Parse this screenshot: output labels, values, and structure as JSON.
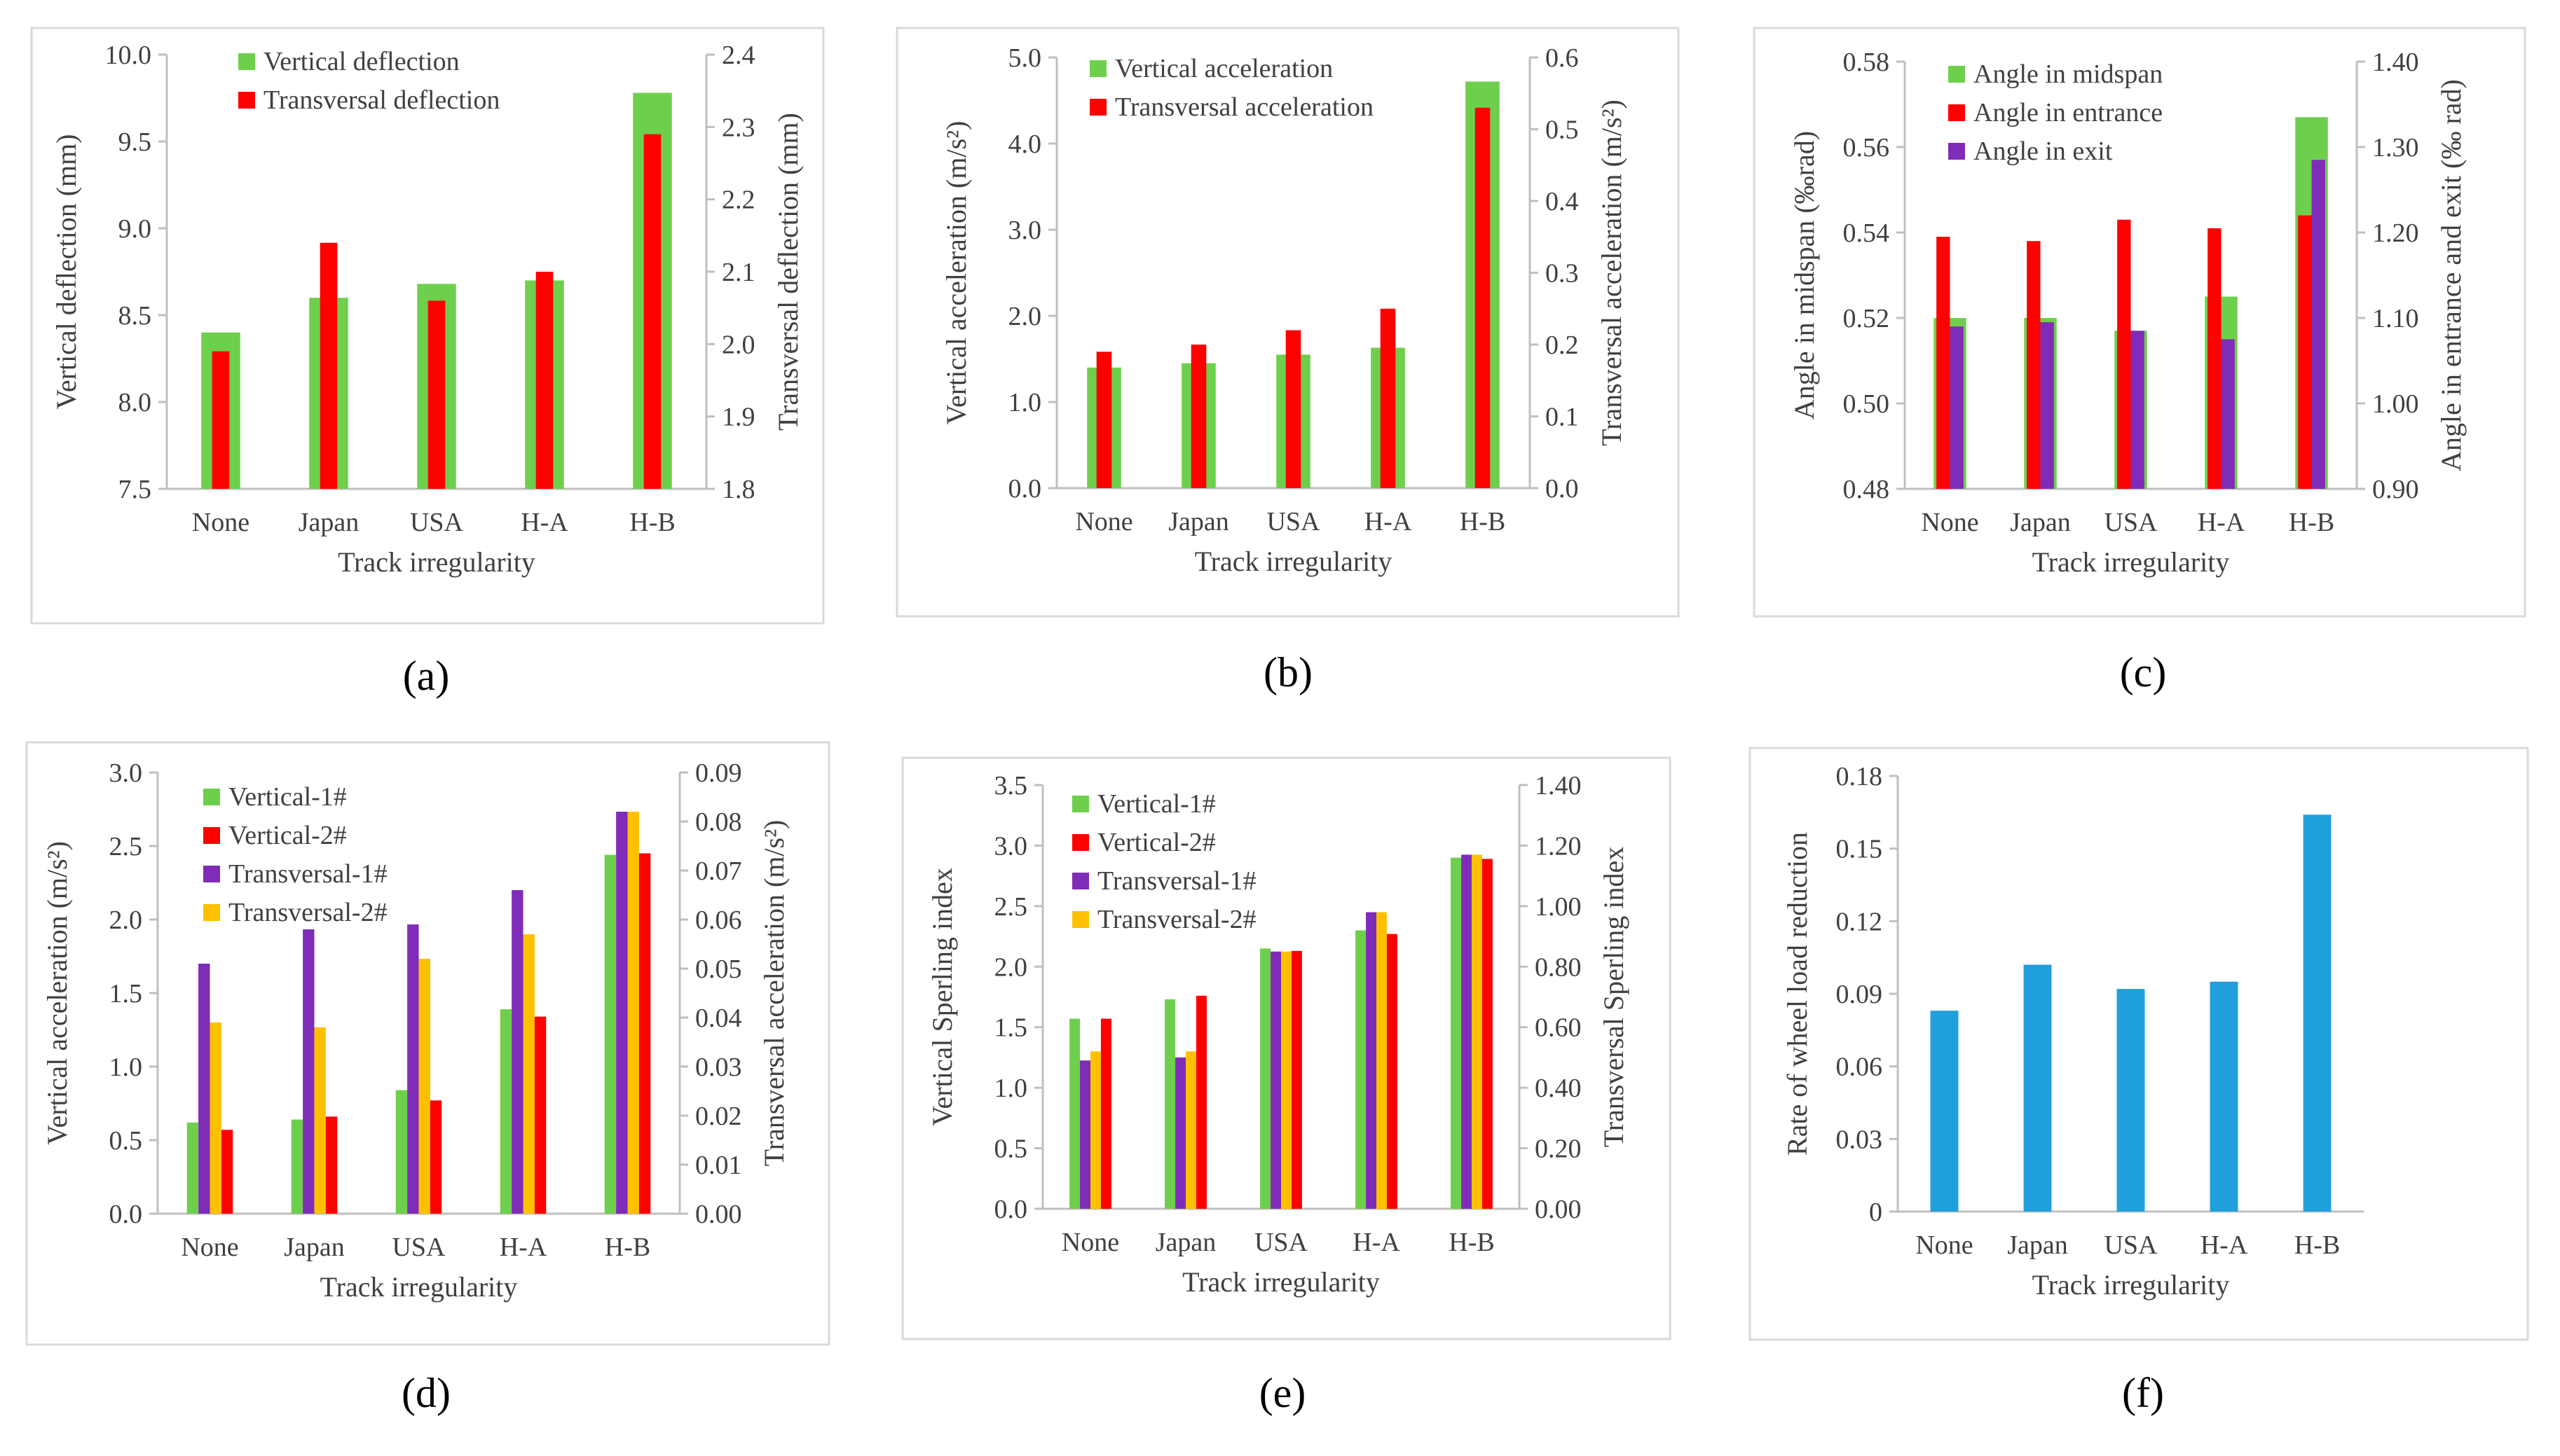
{
  "colors": {
    "green": "#6ecf4c",
    "red": "#ff0000",
    "purple": "#7f2cb8",
    "orange": "#ffc000",
    "blue": "#1f9fdc",
    "axis": "#bfbfbf",
    "text": "#404040"
  },
  "chart_data": [
    {
      "panel": "(a)",
      "type": "bar",
      "categories": [
        "None",
        "Japan",
        "USA",
        "H-A",
        "H-B"
      ],
      "xlabel": "Track irregularity",
      "ylabel": "Vertical deflection (mm)",
      "y2label": "Transversal deflection (mm)",
      "ylim": [
        7.5,
        10.0
      ],
      "yticks": [
        "7.5",
        "8.0",
        "8.5",
        "9.0",
        "9.5",
        "10.0"
      ],
      "y2lim": [
        1.8,
        2.4
      ],
      "y2ticks": [
        "1.8",
        "1.9",
        "2.0",
        "2.1",
        "2.2",
        "2.3",
        "2.4"
      ],
      "legend_position": "top-left",
      "series": [
        {
          "name": "Vertical deflection",
          "color": "green",
          "axis": "left",
          "style": "wide",
          "values": [
            8.4,
            8.6,
            8.68,
            8.7,
            9.78
          ]
        },
        {
          "name": "Transversal deflection",
          "color": "red",
          "axis": "right",
          "style": "narrow",
          "values": [
            1.99,
            2.14,
            2.06,
            2.1,
            2.29
          ]
        }
      ]
    },
    {
      "panel": "(b)",
      "type": "bar",
      "categories": [
        "None",
        "Japan",
        "USA",
        "H-A",
        "H-B"
      ],
      "xlabel": "Track irregularity",
      "ylabel": "Vertical acceleration (m/s²)",
      "y2label": "Transversal acceleration (m/s²)",
      "ylim": [
        0,
        5.0
      ],
      "yticks": [
        "0.0",
        "1.0",
        "2.0",
        "3.0",
        "4.0",
        "5.0"
      ],
      "y2lim": [
        0,
        0.6
      ],
      "y2ticks": [
        "0.0",
        "0.1",
        "0.2",
        "0.3",
        "0.4",
        "0.5",
        "0.6"
      ],
      "legend_position": "top-left",
      "series": [
        {
          "name": "Vertical acceleration",
          "color": "green",
          "axis": "left",
          "style": "wide",
          "values": [
            1.4,
            1.45,
            1.55,
            1.63,
            4.72
          ]
        },
        {
          "name": "Transversal acceleration",
          "color": "red",
          "axis": "right",
          "style": "narrow",
          "values": [
            0.19,
            0.2,
            0.22,
            0.25,
            0.53
          ]
        }
      ]
    },
    {
      "panel": "(c)",
      "type": "bar",
      "categories": [
        "None",
        "Japan",
        "USA",
        "H-A",
        "H-B"
      ],
      "xlabel": "Track irregularity",
      "ylabel": "Angle in midspan (‰rad)",
      "y2label": "Angle in entrance and exit (‰ rad)",
      "ylim": [
        0.48,
        0.58
      ],
      "yticks": [
        "0.48",
        "0.50",
        "0.52",
        "0.54",
        "0.56",
        "0.58"
      ],
      "y2lim": [
        0.9,
        1.4
      ],
      "y2ticks": [
        "0.90",
        "1.00",
        "1.10",
        "1.20",
        "1.30",
        "1.40"
      ],
      "legend_position": "top-left",
      "series": [
        {
          "name": "Angle in midspan",
          "color": "green",
          "axis": "left",
          "style": "wide",
          "values": [
            0.52,
            0.52,
            0.517,
            0.525,
            0.567
          ]
        },
        {
          "name": "Angle in entrance",
          "color": "red",
          "axis": "right",
          "style": "left-narrow",
          "values": [
            1.195,
            1.19,
            1.215,
            1.205,
            1.22
          ]
        },
        {
          "name": "Angle in exit",
          "color": "purple",
          "axis": "right",
          "style": "right-narrow",
          "values": [
            1.09,
            1.095,
            1.085,
            1.075,
            1.285
          ]
        }
      ]
    },
    {
      "panel": "(d)",
      "type": "bar",
      "categories": [
        "None",
        "Japan",
        "USA",
        "H-A",
        "H-B"
      ],
      "xlabel": "Track irregularity",
      "ylabel": "Vertical acceleration (m/s²)",
      "y2label": "Transversal acceleration (m/s²)",
      "ylim": [
        0,
        3.0
      ],
      "yticks": [
        "0.0",
        "0.5",
        "1.0",
        "1.5",
        "2.0",
        "2.5",
        "3.0"
      ],
      "y2lim": [
        0,
        0.09
      ],
      "y2ticks": [
        "0.00",
        "0.01",
        "0.02",
        "0.03",
        "0.04",
        "0.05",
        "0.06",
        "0.07",
        "0.08",
        "0.09"
      ],
      "legend_position": "top-left",
      "series": [
        {
          "name": "Vertical-1#",
          "color": "green",
          "axis": "left",
          "style": "group",
          "values": [
            0.62,
            0.64,
            0.84,
            1.39,
            2.44
          ]
        },
        {
          "name": "Transversal-1#",
          "color": "purple",
          "axis": "right",
          "style": "group",
          "values": [
            0.051,
            0.058,
            0.059,
            0.066,
            0.082
          ]
        },
        {
          "name": "Transversal-2#",
          "color": "orange",
          "axis": "right",
          "style": "group",
          "values": [
            0.039,
            0.038,
            0.052,
            0.057,
            0.082
          ]
        },
        {
          "name": "Vertical-2#",
          "color": "red",
          "axis": "left",
          "style": "group",
          "values": [
            0.57,
            0.66,
            0.77,
            1.34,
            2.45
          ]
        }
      ],
      "legend_order": [
        0,
        3,
        1,
        2
      ]
    },
    {
      "panel": "(e)",
      "type": "bar",
      "categories": [
        "None",
        "Japan",
        "USA",
        "H-A",
        "H-B"
      ],
      "xlabel": "Track irregularity",
      "ylabel": "Vertical Sperling index",
      "y2label": "Transversal Sperling index",
      "ylim": [
        0,
        3.5
      ],
      "yticks": [
        "0.0",
        "0.5",
        "1.0",
        "1.5",
        "2.0",
        "2.5",
        "3.0",
        "3.5"
      ],
      "y2lim": [
        0,
        1.4
      ],
      "y2ticks": [
        "0.00",
        "0.20",
        "0.40",
        "0.60",
        "0.80",
        "1.00",
        "1.20",
        "1.40"
      ],
      "legend_position": "top-left",
      "series": [
        {
          "name": "Vertical-1#",
          "color": "green",
          "axis": "left",
          "style": "group",
          "values": [
            1.57,
            1.73,
            2.15,
            2.3,
            2.9
          ]
        },
        {
          "name": "Transversal-1#",
          "color": "purple",
          "axis": "right",
          "style": "group",
          "values": [
            0.49,
            0.5,
            0.85,
            0.98,
            1.17
          ]
        },
        {
          "name": "Transversal-2#",
          "color": "orange",
          "axis": "right",
          "style": "group",
          "values": [
            0.52,
            0.52,
            0.85,
            0.98,
            1.17
          ]
        },
        {
          "name": "Vertical-2#",
          "color": "red",
          "axis": "left",
          "style": "group",
          "values": [
            1.57,
            1.76,
            2.13,
            2.27,
            2.89
          ]
        }
      ],
      "legend_order": [
        0,
        3,
        1,
        2
      ]
    },
    {
      "panel": "(f)",
      "type": "bar",
      "categories": [
        "None",
        "Japan",
        "USA",
        "H-A",
        "H-B"
      ],
      "xlabel": "Track irregularity",
      "ylabel": "Rate of wheel load reduction",
      "ylim": [
        0,
        0.18
      ],
      "yticks": [
        "0",
        "0.03",
        "0.06",
        "0.09",
        "0.12",
        "0.15",
        "0.18"
      ],
      "series": [
        {
          "name": "Rate of wheel load reduction",
          "color": "blue",
          "axis": "left",
          "style": "single",
          "values": [
            0.083,
            0.102,
            0.092,
            0.095,
            0.164
          ]
        }
      ]
    }
  ]
}
